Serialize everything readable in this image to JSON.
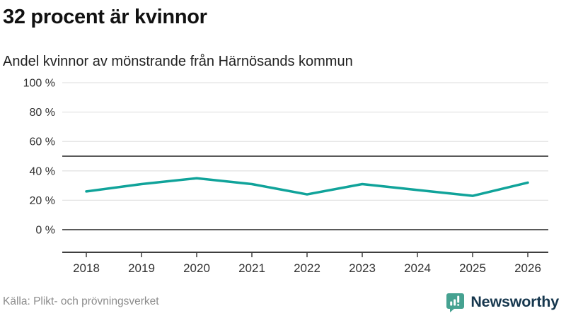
{
  "source": "Källa: Plikt- och prövningsverket",
  "brand": {
    "name": "Newsworthy"
  },
  "colors": {
    "line": "#10a39a",
    "grid": "#e3e3e3",
    "grid_dark": "#5a5a5a",
    "axis": "#3f3f3f",
    "tick_label": "#333333",
    "title": "#111111",
    "subtitle": "#222222",
    "source_text": "#8c8c8c",
    "brand_teal": "#46a291",
    "brand_navy": "#16374e"
  },
  "chart_data": {
    "type": "line",
    "title": "32 procent är kvinnor",
    "subtitle": "Andel kvinnor av mönstrande från Härnösands kommun",
    "x": [
      2018,
      2019,
      2020,
      2021,
      2022,
      2023,
      2024,
      2025,
      2026
    ],
    "series": [
      {
        "name": "Andel kvinnor av mönstrande",
        "color": "#10a39a",
        "values": [
          26,
          31,
          35,
          31,
          24,
          31,
          27,
          23,
          32
        ]
      }
    ],
    "unit": "%",
    "ylim": [
      0,
      100
    ],
    "yticks": [
      0,
      20,
      40,
      60,
      80,
      100
    ],
    "ytick_suffix": " %",
    "emphasized_yticks": [
      0
    ],
    "reference_lines": [
      50
    ],
    "grid": true,
    "legend": false
  }
}
